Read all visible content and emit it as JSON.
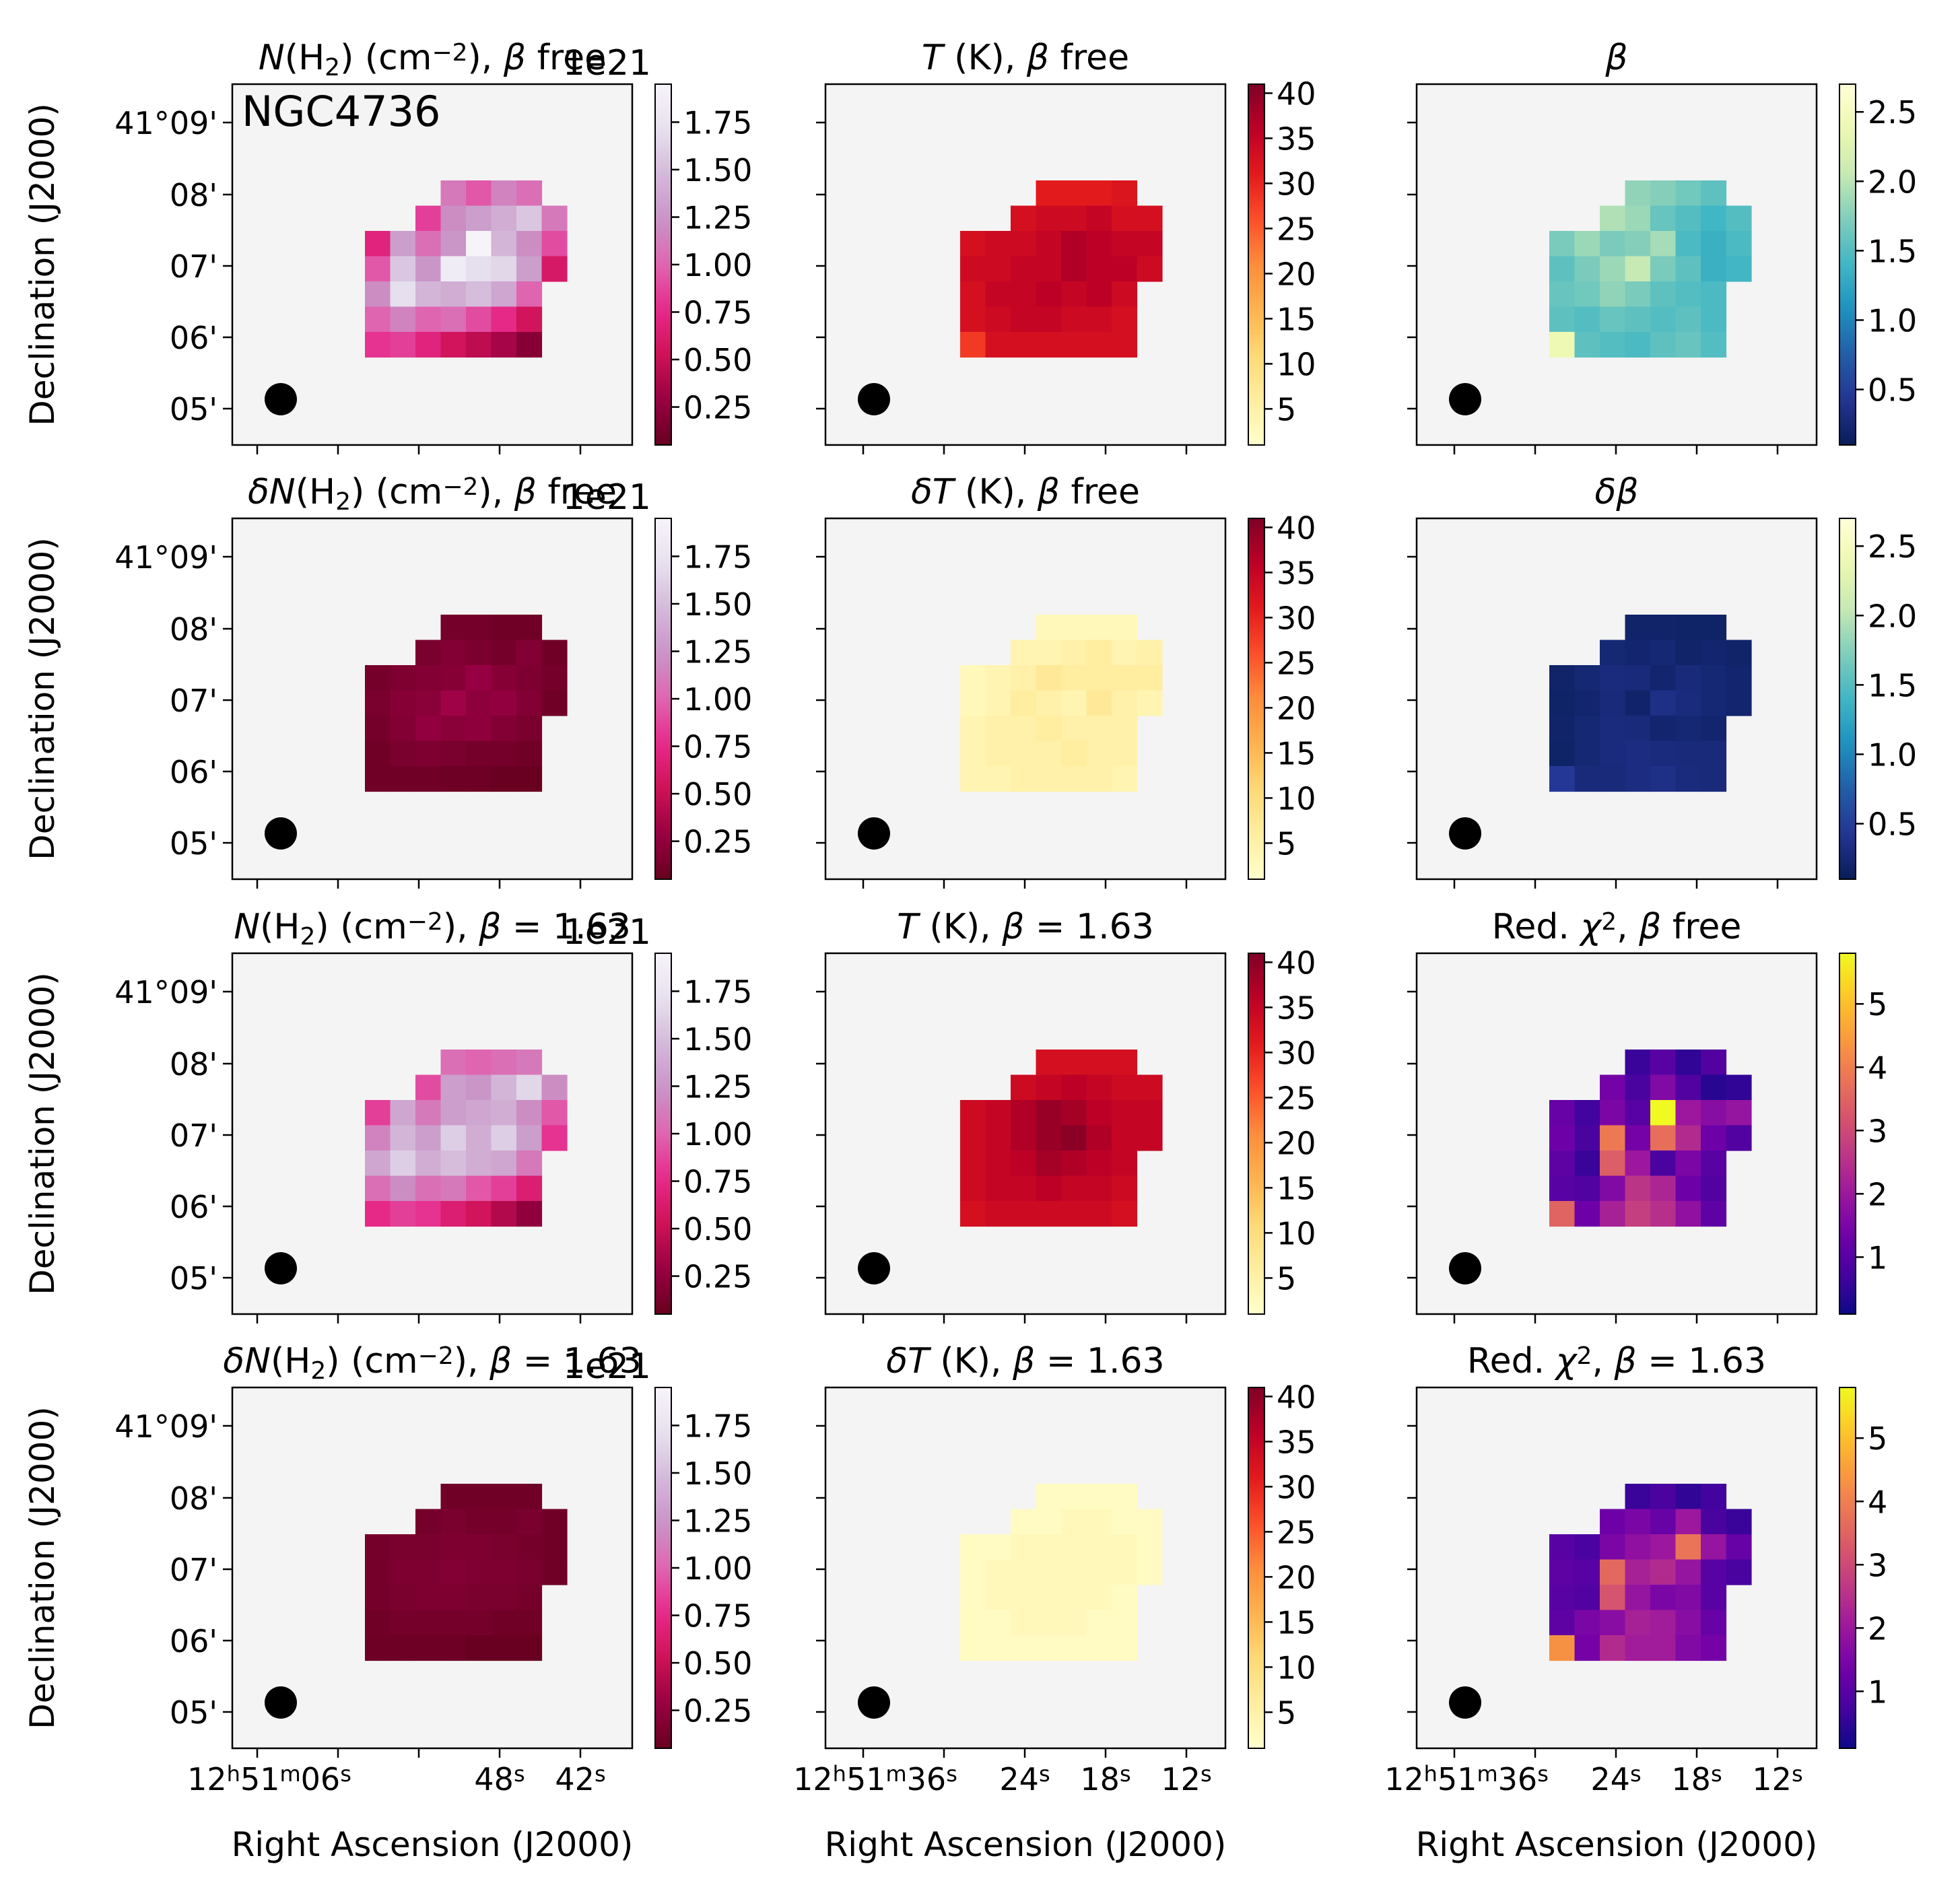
{
  "chart_data": {
    "type": "heatmap",
    "galaxy_label": "NGC4736",
    "xlabel": "Right Ascension (J2000)",
    "ylabel": "Declination (J2000)",
    "dec_ticks": [
      "41°09'",
      "08'",
      "07'",
      "06'",
      "05'"
    ],
    "ra_ticks_col1": [
      "12h51m06s",
      "48s",
      "42s"
    ],
    "ra_ticks_col23": [
      "12h51m36s",
      "24s",
      "18s",
      "12s"
    ],
    "colorbars": {
      "column_density": {
        "cmap": "PuRd_r",
        "range": [
          0.05,
          1.95
        ],
        "ticks": [
          "0.25",
          "0.50",
          "0.75",
          "1.00",
          "1.25",
          "1.50",
          "1.75"
        ],
        "offset_text": "1e21"
      },
      "temperature": {
        "cmap": "YlOrRd",
        "range": [
          1,
          41
        ],
        "ticks": [
          "5",
          "10",
          "15",
          "20",
          "25",
          "30",
          "35",
          "40"
        ]
      },
      "beta": {
        "cmap": "YlGnBu_r",
        "range": [
          0.1,
          2.7
        ],
        "ticks": [
          "0.5",
          "1.0",
          "1.5",
          "2.0",
          "2.5"
        ]
      },
      "chi2": {
        "cmap": "plasma",
        "range": [
          0.1,
          5.8
        ],
        "ticks": [
          "1",
          "2",
          "3",
          "4",
          "5"
        ]
      }
    },
    "panels": [
      {
        "title": "N(H2) (cm-2), β free",
        "quantity": "column_density",
        "values": [
          [
            null,
            null,
            null,
            null,
            null,
            null,
            null,
            null,
            null,
            null
          ],
          [
            null,
            null,
            null,
            null,
            null,
            null,
            null,
            null,
            null,
            null
          ],
          [
            null,
            null,
            null,
            null,
            null,
            null,
            null,
            null,
            null,
            null
          ],
          [
            null,
            null,
            null,
            null,
            null,
            null,
            null,
            null,
            null,
            null
          ],
          [
            null,
            null,
            null,
            null,
            null,
            null,
            null,
            null,
            null,
            null
          ],
          [
            null,
            null,
            null,
            null,
            null,
            null,
            null,
            null,
            null,
            null
          ],
          [
            null,
            null,
            null,
            null,
            null,
            null,
            null,
            null,
            null,
            null
          ],
          [
            null,
            null,
            null,
            null,
            null,
            null,
            null,
            null,
            null,
            null
          ],
          [
            null,
            null,
            null,
            null,
            null,
            null,
            null,
            null,
            null,
            null
          ],
          [
            null,
            null,
            null,
            null,
            null,
            null,
            null,
            null,
            null,
            null
          ]
        ]
      }
    ]
  }
}
